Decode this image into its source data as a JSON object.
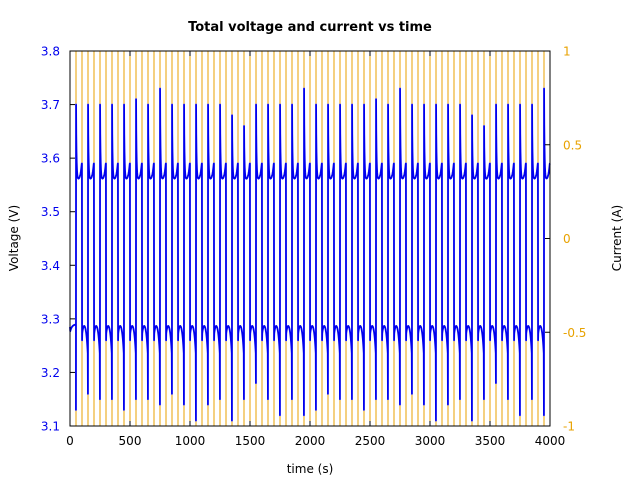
{
  "chart_data": {
    "type": "line",
    "title": "Total voltage and current vs time",
    "xlabel": "time (s)",
    "ylabel": "Voltage (V)",
    "y2label": "Current (A)",
    "xlim": [
      0,
      4000
    ],
    "ylim": [
      3.1,
      3.8
    ],
    "y2lim": [
      -1,
      1
    ],
    "x_ticks": [
      "0",
      "500",
      "1000",
      "1500",
      "2000",
      "2500",
      "3000",
      "3500",
      "4000"
    ],
    "y_ticks": [
      "3.1",
      "3.2",
      "3.3",
      "3.4",
      "3.5",
      "3.6",
      "3.7",
      "3.8"
    ],
    "y2_ticks": [
      "-1",
      "-0.5",
      "0",
      "0.5",
      "1"
    ],
    "colors": {
      "voltage": "#0000ee",
      "current": "#e8a200",
      "left_axis": "#0000ee",
      "right_axis": "#e8a200"
    },
    "grid": false,
    "legend": "none",
    "series": [
      {
        "axis": "left",
        "color": "#0000ee",
        "description": "voltage alternates between charge plateau ~3.56-3.74 V and discharge plateau ~3.12-3.29 V every ~100 s",
        "cycle_period_s": 100,
        "charge_spike_peaks": [
          3.71,
          3.7,
          3.71,
          3.7,
          3.74,
          3.7,
          3.74,
          3.7,
          3.74,
          3.7,
          3.7,
          3.71,
          3.7,
          3.7,
          3.7,
          3.73,
          3.7,
          3.7,
          3.7,
          3.7,
          3.7,
          3.7,
          3.7,
          3.7,
          3.68,
          3.7,
          3.7,
          3.68,
          3.7,
          3.66,
          3.7,
          3.7,
          3.73,
          3.7,
          3.7,
          3.7,
          3.73,
          3.7,
          3.7,
          3.73
        ],
        "charge_plateau_min": 3.56,
        "discharge_plateau_max": 3.29,
        "discharge_spike_lows": [
          3.13,
          3.12,
          3.16,
          3.12,
          3.15,
          3.12,
          3.15,
          3.12,
          3.13,
          3.12,
          3.15,
          3.12,
          3.15,
          3.12,
          3.14,
          3.12,
          3.16,
          3.12,
          3.14,
          3.12,
          3.11,
          3.12,
          3.14,
          3.12,
          3.15,
          3.12,
          3.11,
          3.12,
          3.15,
          3.12,
          3.18,
          3.12,
          3.15,
          3.12,
          3.12,
          3.12,
          3.15,
          3.12,
          3.12,
          3.12
        ]
      },
      {
        "axis": "right",
        "color": "#e8a200",
        "description": "square-wave current switching between +1 A and -1 A every 50 s",
        "half_period_s": 50,
        "values": [
          1,
          -1
        ]
      }
    ]
  }
}
